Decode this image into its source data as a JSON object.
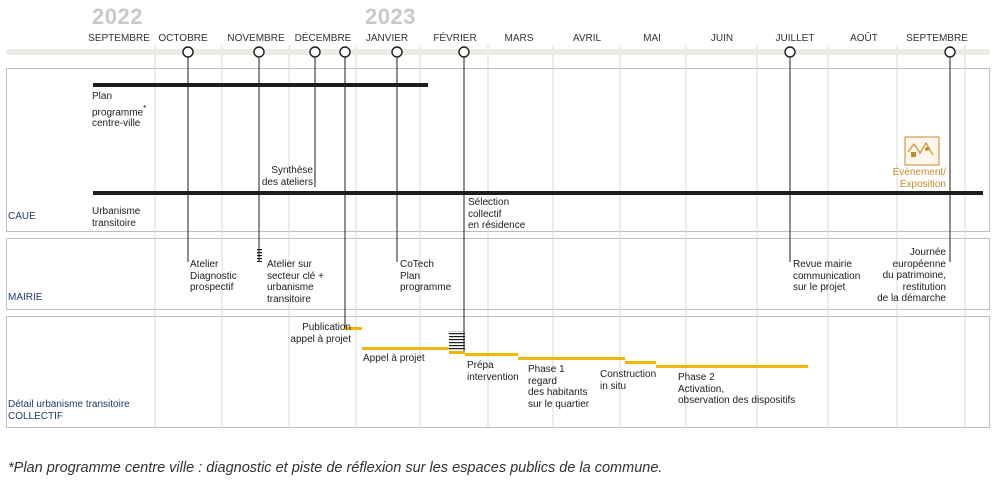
{
  "timeline": {
    "years": {
      "y2022": "2022",
      "y2023": "2023"
    },
    "months": [
      "SEPTEMBRE",
      "OCTOBRE",
      "NOVEMBRE",
      "DÉCEMBRE",
      "JANVIER",
      "FÉVRIER",
      "MARS",
      "AVRIL",
      "MAI",
      "JUIN",
      "JUILLET",
      "AOÛT",
      "SEPTEMBRE"
    ]
  },
  "bands": {
    "caue": "CAUE",
    "mairie": "MAIRIE",
    "collectif_line1": "Détail urbanisme transitoire",
    "collectif_line2": "COLLECTIF"
  },
  "caue": {
    "plan_programme": [
      "Plan",
      "programme",
      "centre-ville"
    ],
    "plan_programme_asterisk": "*",
    "synthese": [
      "Synthèse",
      "des ateliers"
    ],
    "urbanisme": [
      "Urbanisme",
      "transitoire"
    ],
    "selection": [
      "Sélection",
      "collectif",
      "en résidence"
    ],
    "evenement": [
      "Évènement/",
      "Exposition"
    ]
  },
  "mairie": {
    "atelier_diag": [
      "Atelier",
      "Diagnostic",
      "prospectif"
    ],
    "atelier_secteur": [
      "Atelier sur",
      "secteur clé +",
      "urbanisme",
      "transitoire"
    ],
    "cotech": [
      "CoTech",
      "Plan",
      "programme"
    ],
    "revue": [
      "Revue mairie",
      "communication",
      "sur le projet"
    ],
    "journee": [
      "Journée",
      "européenne",
      "du patrimoine,",
      "restitution",
      "de la démarche"
    ]
  },
  "collectif": {
    "publication": [
      "Publication",
      "appel à projet"
    ],
    "appel": [
      "Appel à projet"
    ],
    "prepa": [
      "Prépa",
      "intervention"
    ],
    "phase1": [
      "Phase 1",
      "regard",
      "des habitants",
      "sur le quartier"
    ],
    "construction": [
      "Construction",
      "in situ"
    ],
    "phase2": [
      "Phase 2",
      "Activation,",
      "observation des dispositifs"
    ]
  },
  "footnote": "*Plan programme centre ville : diagnostic et piste de réflexion sur les espaces publics de la commune.",
  "colors": {
    "accent": "#f2b705",
    "event": "#c98a2b",
    "band_label": "#1f3a6b",
    "grid": "#cfcfcf"
  }
}
